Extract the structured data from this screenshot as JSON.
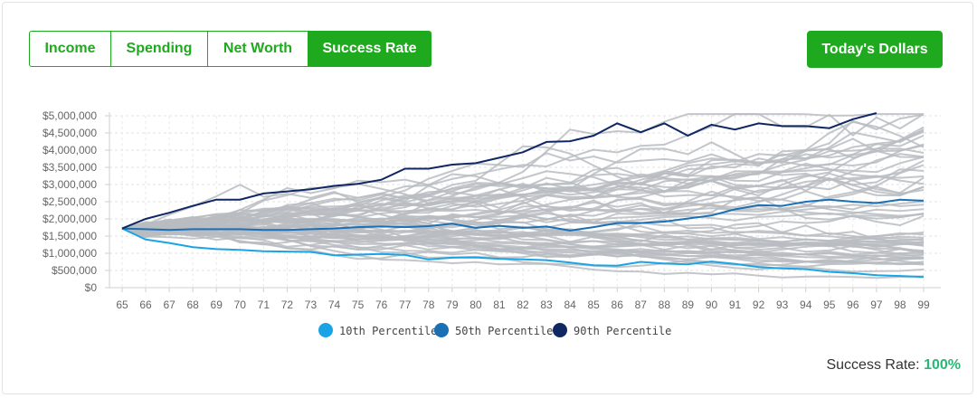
{
  "tabs": [
    {
      "label": "Income",
      "active": false
    },
    {
      "label": "Spending",
      "active": false
    },
    {
      "label": "Net Worth",
      "active": false
    },
    {
      "label": "Success Rate",
      "active": true
    }
  ],
  "dollars_button": "Today's Dollars",
  "success": {
    "label": "Success Rate:",
    "value": "100%"
  },
  "colors": {
    "accent": "#1fa91f",
    "sim": "#b9bcc1",
    "p10": "#1ba4e5",
    "p50": "#1a6fb5",
    "p90": "#0f2763",
    "success_value": "#2bb673"
  },
  "chart_data": {
    "type": "line",
    "x": [
      65,
      66,
      67,
      68,
      69,
      70,
      71,
      72,
      73,
      74,
      75,
      76,
      77,
      78,
      79,
      80,
      81,
      82,
      83,
      84,
      85,
      86,
      87,
      88,
      89,
      90,
      91,
      92,
      93,
      94,
      95,
      96,
      97,
      98,
      99
    ],
    "ylim": [
      0,
      5000000
    ],
    "yticks": [
      0,
      500000,
      1000000,
      1500000,
      2000000,
      2500000,
      3000000,
      3500000,
      4000000,
      4500000,
      5000000
    ],
    "ytick_labels": [
      "$0",
      "$500,000",
      "$1,000,000",
      "$1,500,000",
      "$2,000,000",
      "$2,500,000",
      "$3,000,000",
      "$3,500,000",
      "$4,000,000",
      "$4,500,000",
      "$5,000,000"
    ],
    "grid": true,
    "legend_position": "bottom",
    "series": [
      {
        "name": "10th Percentile",
        "color": "#1ba4e5",
        "values": [
          1720000,
          1400000,
          1300000,
          1180000,
          1120000,
          1100000,
          1060000,
          1050000,
          1040000,
          940000,
          960000,
          980000,
          950000,
          820000,
          870000,
          880000,
          840000,
          820000,
          800000,
          730000,
          650000,
          640000,
          750000,
          700000,
          680000,
          760000,
          690000,
          600000,
          560000,
          540000,
          460000,
          420000,
          360000,
          340000,
          310000
        ]
      },
      {
        "name": "50th Percentile",
        "color": "#1a6fb5",
        "values": [
          1720000,
          1700000,
          1680000,
          1700000,
          1700000,
          1700000,
          1680000,
          1680000,
          1700000,
          1720000,
          1760000,
          1780000,
          1760000,
          1790000,
          1860000,
          1740000,
          1800000,
          1740000,
          1780000,
          1660000,
          1760000,
          1880000,
          1880000,
          1920000,
          2010000,
          2100000,
          2280000,
          2400000,
          2380000,
          2500000,
          2560000,
          2500000,
          2460000,
          2560000,
          2530000
        ]
      },
      {
        "name": "90th Percentile",
        "color": "#0f2763",
        "values": [
          1720000,
          2000000,
          2180000,
          2380000,
          2560000,
          2560000,
          2740000,
          2800000,
          2860000,
          2960000,
          3020000,
          3140000,
          3460000,
          3460000,
          3580000,
          3620000,
          3780000,
          3940000,
          4240000,
          4260000,
          4420000,
          4780000,
          4520000,
          4780000,
          4420000,
          4740000,
          4600000,
          4780000,
          4700000,
          4700000,
          4640000,
          4900000,
          5080000,
          null,
          null
        ]
      }
    ]
  }
}
